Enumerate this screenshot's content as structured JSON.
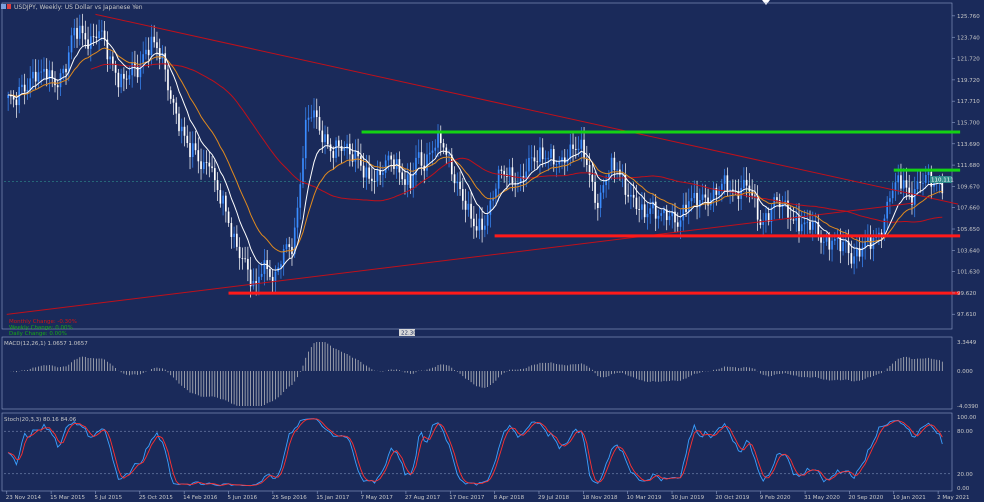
{
  "window_title": "USDJPY, Weekly: US Dollar vs Japanese Yen",
  "chart_data": [
    {
      "type": "candlestick",
      "panel": "price",
      "symbol": "USDJPY",
      "timeframe": "Weekly",
      "description": "US Dollar vs Japanese Yen",
      "current_price": "110.111",
      "ylim": [
        96.5,
        126.5
      ],
      "y_ticks": [
        "125.760",
        "123.740",
        "121.720",
        "119.720",
        "117.710",
        "115.700",
        "113.690",
        "111.680",
        "109.670",
        "107.660",
        "105.650",
        "103.640",
        "101.630",
        "99.620",
        "97.610"
      ],
      "x_ticks": [
        "23 Nov 2014",
        "15 Mar 2015",
        "5 Jul 2015",
        "25 Oct 2015",
        "14 Feb 2016",
        "5 Jun 2016",
        "25 Sep 2016",
        "15 Jan 2017",
        "7 May 2017",
        "27 Aug 2017",
        "17 Dec 2017",
        "8 Apr 2018",
        "29 Jul 2018",
        "18 Nov 2018",
        "10 Mar 2019",
        "30 Jun 2019",
        "20 Oct 2019",
        "9 Feb 2020",
        "31 May 2020",
        "20 Sep 2020",
        "10 Jan 2021",
        "2 May 2021"
      ],
      "close_path": [
        118.0,
        117.2,
        118.8,
        119.5,
        120.6,
        119.8,
        120.3,
        119.6,
        120.2,
        121.0,
        123.8,
        124.5,
        123.9,
        123.4,
        124.1,
        122.8,
        121.5,
        120.1,
        119.3,
        120.5,
        120.8,
        122.6,
        123.2,
        122.3,
        121.2,
        118.6,
        116.4,
        114.0,
        112.9,
        113.3,
        111.6,
        112.0,
        109.1,
        108.6,
        106.8,
        104.2,
        102.5,
        101.6,
        100.3,
        102.3,
        101.5,
        100.2,
        103.2,
        104.5,
        103.8,
        109.5,
        116.0,
        117.5,
        115.1,
        113.3,
        112.6,
        114.0,
        113.6,
        112.3,
        111.9,
        111.0,
        110.9,
        110.4,
        111.2,
        112.4,
        111.9,
        110.5,
        109.3,
        112.4,
        111.9,
        113.1,
        113.8,
        113.4,
        112.0,
        110.6,
        108.7,
        106.7,
        105.7,
        106.3,
        107.2,
        109.2,
        110.8,
        111.2,
        110.6,
        109.8,
        111.2,
        112.4,
        113.0,
        112.7,
        111.8,
        111.5,
        112.9,
        113.6,
        113.2,
        112.1,
        109.8,
        108.2,
        110.3,
        111.1,
        111.4,
        110.1,
        108.7,
        107.5,
        106.6,
        108.1,
        107.5,
        106.7,
        106.6,
        106.2,
        107.5,
        108.6,
        107.8,
        108.4,
        108.8,
        109.3,
        109.6,
        109.4,
        109.0,
        110.0,
        109.8,
        107.8,
        106.1,
        107.2,
        108.3,
        107.8,
        107.2,
        106.8,
        106.5,
        105.6,
        105.9,
        105.2,
        104.7,
        104.5,
        103.8,
        104.2,
        103.3,
        103.5,
        103.9,
        104.3,
        105.2,
        106.6,
        108.9,
        109.6,
        110.4,
        108.9,
        109.5,
        110.0,
        110.3,
        110.5,
        110.1
      ],
      "lines": [
        {
          "name": "",
          "color": "#c0101a",
          "style": "trendline",
          "from": [
            "23 Nov 2014",
            97.6
          ],
          "to": [
            "10 Jan 2021",
            108.1
          ],
          "note_free": true
        },
        {
          "name": "",
          "color": "#c0101a",
          "style": "trendline",
          "from": [
            "5 Jul 2015",
            125.9
          ],
          "to": [
            "2 May 2021",
            108.0
          ]
        }
      ],
      "levels": [
        {
          "price": 114.8,
          "color": "#14d214",
          "from": "7 May 2017",
          "to": "2 May 2021"
        },
        {
          "price": 105.0,
          "color": "#ff1a1a",
          "from": "8 Apr 2018",
          "to": "2 May 2021"
        },
        {
          "price": 99.6,
          "color": "#ff1a1a",
          "from": "5 Jun 2016",
          "to": "2 May 2021"
        },
        {
          "price": 111.2,
          "color": "#14d214",
          "from": "10 Jan 2021",
          "to": "2 May 2021"
        }
      ],
      "info_lines": [
        {
          "text": "Monthly Change: -0.30%",
          "color": "#d01414"
        },
        {
          "text": "Weekly Change: 0.00%",
          "color": "#18a818"
        },
        {
          "text": "Daily Change: 0.00%",
          "color": "#18a818"
        }
      ],
      "tag": "22.30"
    },
    {
      "type": "histogram",
      "panel": "macd",
      "label": "MACD(12,26,1) 1.0657 1.0657",
      "y_ticks": [
        "3.3449",
        "0.000",
        "-4.0390"
      ]
    },
    {
      "type": "line",
      "panel": "stochastic",
      "label": "Stoch(20,3,3) 80.16 84.06",
      "y_ticks": [
        "100.00",
        "80.00",
        "20.00",
        "0.00"
      ],
      "series": [
        {
          "color": "#3aa0ff"
        },
        {
          "color": "#ff3030"
        }
      ]
    }
  ],
  "colors": {
    "background": "#1a2a5a",
    "bull": "#3a8cff",
    "bear": "#ffffff",
    "ema_fast": "#ffffff",
    "ema_slow": "#e08a1e",
    "sma_long": "#c0101a"
  }
}
